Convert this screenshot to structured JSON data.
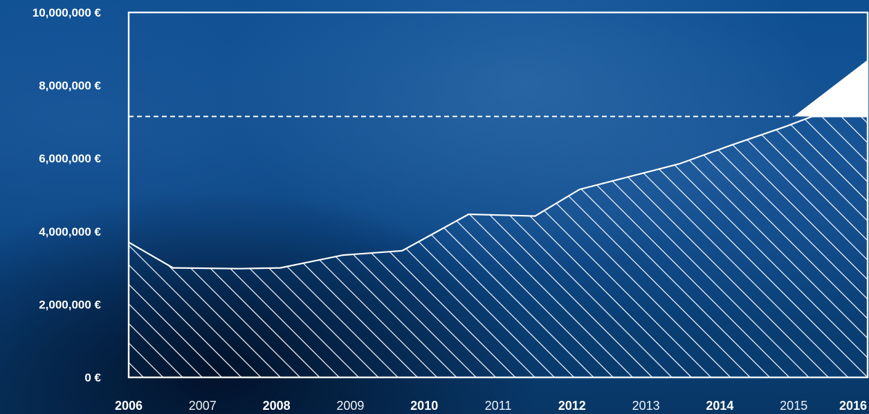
{
  "chart_data": {
    "type": "area",
    "title": "",
    "xlabel": "",
    "ylabel": "",
    "ylim": [
      0,
      10000000
    ],
    "xlim": [
      2006,
      2016
    ],
    "y_ticks": [
      {
        "value": 0,
        "label": "0 €"
      },
      {
        "value": 2000000,
        "label": "2,000,000 €"
      },
      {
        "value": 4000000,
        "label": "4,000,000 €"
      },
      {
        "value": 6000000,
        "label": "6,000,000 €"
      },
      {
        "value": 8000000,
        "label": "8,000,000 €"
      },
      {
        "value": 10000000,
        "label": "10,000,000 €"
      }
    ],
    "x_ticks": [
      {
        "value": 2006,
        "label": "2006",
        "bold": true
      },
      {
        "value": 2007,
        "label": "2007",
        "bold": false
      },
      {
        "value": 2008,
        "label": "2008",
        "bold": true
      },
      {
        "value": 2009,
        "label": "2009",
        "bold": false
      },
      {
        "value": 2010,
        "label": "2010",
        "bold": true
      },
      {
        "value": 2011,
        "label": "2011",
        "bold": false
      },
      {
        "value": 2012,
        "label": "2012",
        "bold": true
      },
      {
        "value": 2013,
        "label": "2013",
        "bold": false
      },
      {
        "value": 2014,
        "label": "2014",
        "bold": true
      },
      {
        "value": 2015,
        "label": "2015",
        "bold": false
      },
      {
        "value": 2016,
        "label": "2016",
        "bold": true
      }
    ],
    "series": [
      {
        "fill": "hatched",
        "x": [
          2006,
          2006.6,
          2007.5,
          2008.05,
          2008.9,
          2009.7,
          2010.6,
          2011.5,
          2012.1,
          2013.45,
          2014.15,
          2014.9,
          2015.25,
          2015.6,
          2016
        ],
        "values": [
          3700000,
          3000000,
          2980000,
          3000000,
          3350000,
          3470000,
          4470000,
          4420000,
          5150000,
          5850000,
          6360000,
          6880000,
          7150000,
          7150000,
          7150000
        ]
      },
      {
        "fill": "solid-white",
        "x": [
          2015.0,
          2016
        ],
        "values": [
          7150000,
          8700000
        ]
      }
    ],
    "reference_line": {
      "value": 7150000,
      "style": "dashed"
    },
    "grid": false,
    "colors": {
      "foreground": "#ffffff",
      "background": "#0d4b8c"
    }
  }
}
